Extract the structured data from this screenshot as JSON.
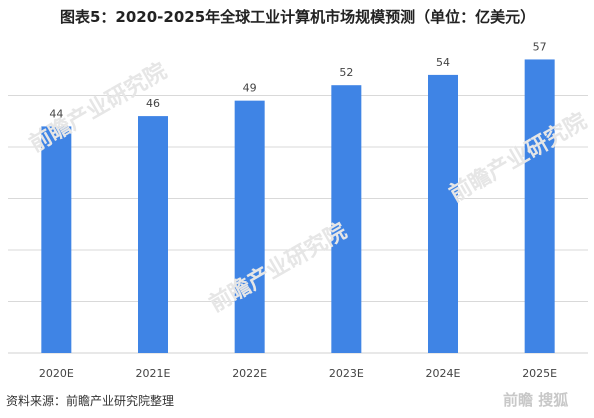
{
  "title": "图表5：2020-2025年全球工业计算机市场规模预测（单位：亿美元）",
  "source": "资料来源：前瞻产业研究院整理",
  "watermark": "前瞻产业研究院",
  "corner_text": "前瞻 搜狐",
  "colors": {
    "bar": "#3f84e5",
    "grid": "#d9d9d9",
    "label": "#444444"
  },
  "chart_data": {
    "type": "bar",
    "title": "图表5：2020-2025年全球工业计算机市场规模预测（单位：亿美元）",
    "categories": [
      "2020E",
      "2021E",
      "2022E",
      "2023E",
      "2024E",
      "2025E"
    ],
    "values": [
      44,
      46,
      49,
      52,
      54,
      57
    ],
    "ylim": [
      0,
      60
    ],
    "grid": true,
    "data_labels": true
  }
}
